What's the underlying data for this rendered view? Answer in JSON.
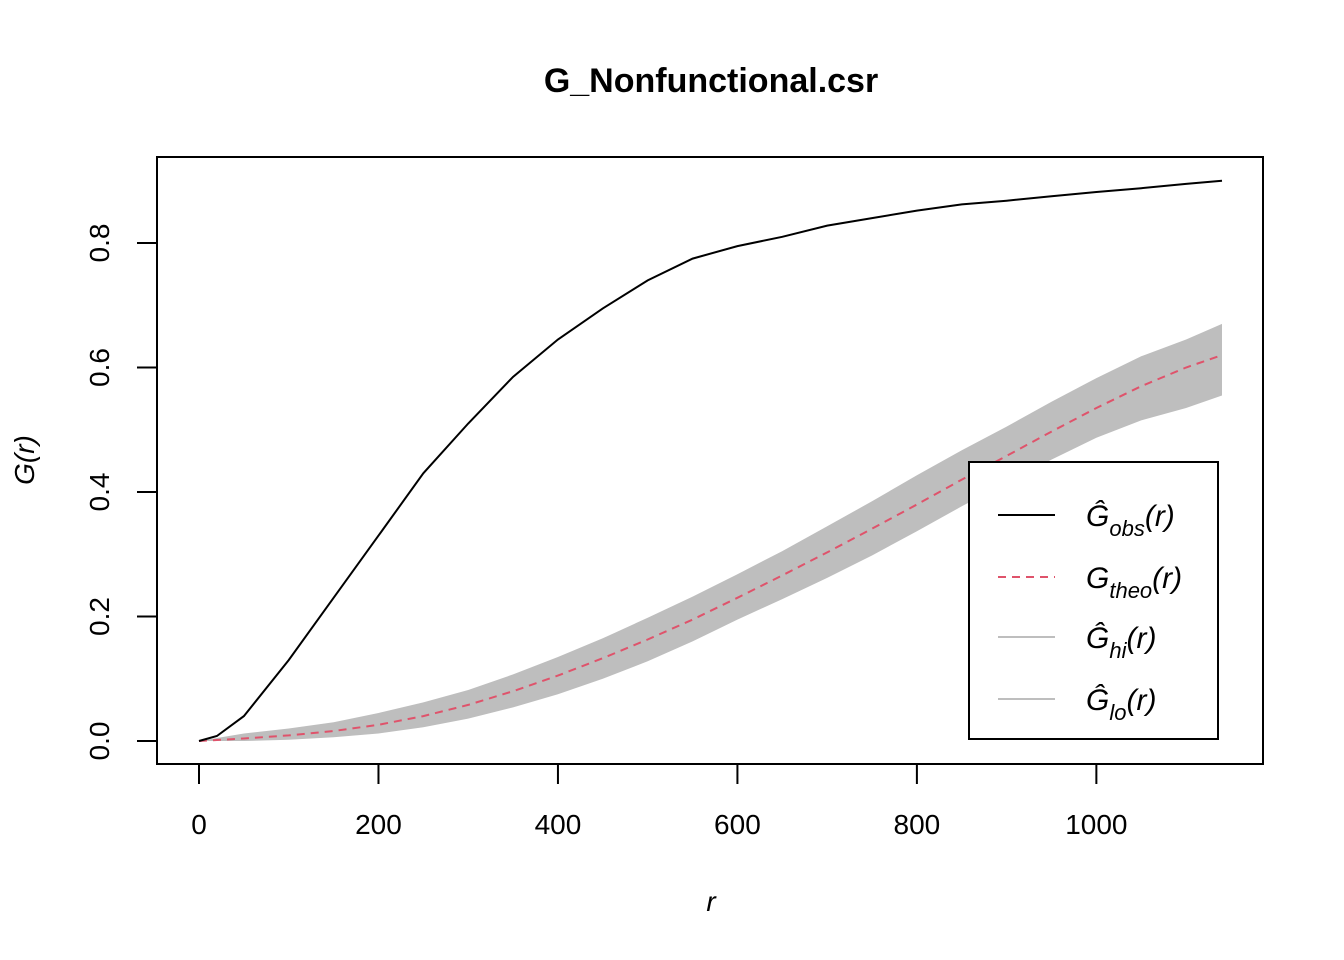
{
  "chart_data": {
    "type": "line",
    "title": "G_Nonfunctional.csr",
    "xlabel": "r",
    "ylabel": "G(r)",
    "xlim": [
      0,
      1140
    ],
    "ylim": [
      0,
      0.9
    ],
    "x_ticks": [
      "0",
      "200",
      "400",
      "600",
      "800",
      "1000"
    ],
    "y_ticks": [
      "0.0",
      "0.2",
      "0.4",
      "0.6",
      "0.8"
    ],
    "legend_position": "bottom-right",
    "colors": {
      "obs": "#000000",
      "theo": "#DF536B",
      "envelope": "#BEBEBE"
    },
    "series": [
      {
        "key": "obs",
        "label_main": "Ĝ",
        "label_sub": "obs",
        "label_tail": "(r)",
        "line_style": "solid",
        "x": [
          0,
          20,
          50,
          100,
          150,
          200,
          250,
          300,
          350,
          400,
          450,
          500,
          550,
          600,
          650,
          700,
          750,
          800,
          850,
          900,
          950,
          1000,
          1050,
          1100,
          1140
        ],
        "y": [
          0,
          0.008,
          0.04,
          0.13,
          0.23,
          0.33,
          0.43,
          0.51,
          0.585,
          0.645,
          0.695,
          0.74,
          0.775,
          0.795,
          0.81,
          0.828,
          0.84,
          0.852,
          0.862,
          0.868,
          0.875,
          0.882,
          0.888,
          0.895,
          0.9
        ]
      },
      {
        "key": "theo",
        "label_main": "G",
        "label_sub": "theo",
        "label_tail": "(r)",
        "line_style": "dashed",
        "x": [
          0,
          50,
          100,
          150,
          200,
          250,
          300,
          350,
          400,
          450,
          500,
          550,
          600,
          650,
          700,
          750,
          800,
          850,
          900,
          950,
          1000,
          1050,
          1100,
          1140
        ],
        "y": [
          0,
          0.004,
          0.009,
          0.016,
          0.026,
          0.04,
          0.058,
          0.08,
          0.105,
          0.133,
          0.163,
          0.195,
          0.23,
          0.266,
          0.303,
          0.341,
          0.38,
          0.42,
          0.458,
          0.497,
          0.535,
          0.57,
          0.6,
          0.62
        ]
      },
      {
        "key": "hi",
        "label_main": "Ĝ",
        "label_sub": "hi",
        "label_tail": "(r)",
        "line_style": "band-upper",
        "x": [
          0,
          50,
          100,
          150,
          200,
          250,
          300,
          350,
          400,
          450,
          500,
          550,
          600,
          650,
          700,
          750,
          800,
          850,
          900,
          950,
          1000,
          1050,
          1100,
          1140
        ],
        "y": [
          0,
          0.012,
          0.02,
          0.03,
          0.045,
          0.062,
          0.082,
          0.107,
          0.135,
          0.165,
          0.198,
          0.232,
          0.268,
          0.305,
          0.345,
          0.385,
          0.427,
          0.467,
          0.505,
          0.545,
          0.583,
          0.618,
          0.645,
          0.67
        ]
      },
      {
        "key": "lo",
        "label_main": "Ĝ",
        "label_sub": "lo",
        "label_tail": "(r)",
        "line_style": "band-lower",
        "x": [
          0,
          50,
          100,
          150,
          200,
          250,
          300,
          350,
          400,
          450,
          500,
          550,
          600,
          650,
          700,
          750,
          800,
          850,
          900,
          950,
          1000,
          1050,
          1100,
          1140
        ],
        "y": [
          0,
          0.0,
          0.002,
          0.006,
          0.012,
          0.022,
          0.036,
          0.054,
          0.075,
          0.1,
          0.128,
          0.16,
          0.195,
          0.228,
          0.262,
          0.298,
          0.337,
          0.377,
          0.415,
          0.452,
          0.487,
          0.515,
          0.535,
          0.555
        ]
      }
    ]
  }
}
